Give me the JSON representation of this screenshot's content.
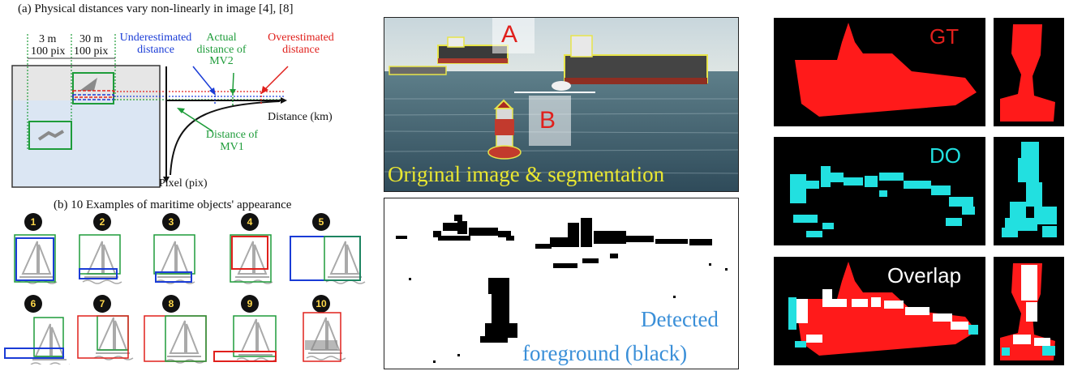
{
  "panel_a": {
    "caption": "(a) Physical distances vary non-linearly in image [4], [8]",
    "left_dist": "3 m",
    "left_pix": "100 pix",
    "right_dist": "30 m",
    "right_pix": "100 pix",
    "underestimated": [
      "Underestimated",
      "distance"
    ],
    "actual": [
      "Actual",
      "distance of",
      "MV2"
    ],
    "overestimated": [
      "Overestimated",
      "distance"
    ],
    "mv1": [
      "Distance of",
      "MV1"
    ],
    "x_axis": "Distance (km)",
    "y_axis": "Pixel (pix)"
  },
  "panel_b": {
    "caption": "(b) 10 Examples of maritime objects' appearance",
    "examples": [
      "1",
      "2",
      "3",
      "4",
      "5",
      "6",
      "7",
      "8",
      "9",
      "10"
    ]
  },
  "middle": {
    "marker_a": "A",
    "marker_b": "B",
    "top_caption": "Original image & segmentation",
    "bottom_caption": [
      "Detected",
      "foreground (black)"
    ]
  },
  "right": {
    "gt_label": "GT",
    "do_label": "DO",
    "overlap_label": "Overlap"
  },
  "colors": {
    "blue": "#1a3cd6",
    "green": "#1e9c3a",
    "red": "#e0201c",
    "cyan": "#22e0e0",
    "yellow_caption": "#e8e830",
    "caption_blue": "#3a8fd8"
  }
}
